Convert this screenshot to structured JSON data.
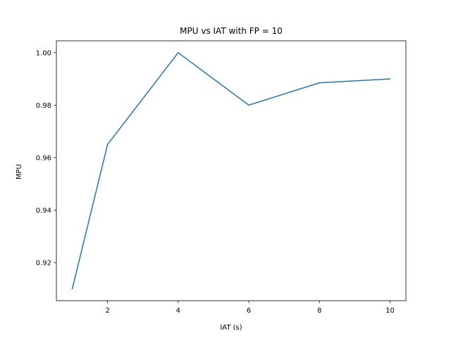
{
  "chart_data": {
    "type": "line",
    "title": "MPU vs IAT with FP = 10",
    "xlabel": "IAT (s)",
    "ylabel": "MPU",
    "xlim": [
      0.55,
      10.45
    ],
    "ylim": [
      0.9055,
      1.0045
    ],
    "xticks": [
      2,
      4,
      6,
      8,
      10
    ],
    "xtick_labels": [
      "2",
      "4",
      "6",
      "8",
      "10"
    ],
    "yticks": [
      0.92,
      0.94,
      0.96,
      0.98,
      1.0
    ],
    "ytick_labels": [
      "0.92",
      "0.94",
      "0.96",
      "0.98",
      "1.00"
    ],
    "grid": false,
    "series": [
      {
        "color": "#1f77b4",
        "x": [
          1,
          2,
          4,
          6,
          8,
          10
        ],
        "y": [
          0.91,
          0.965,
          1.0,
          0.98,
          0.9885,
          0.99
        ]
      }
    ]
  }
}
